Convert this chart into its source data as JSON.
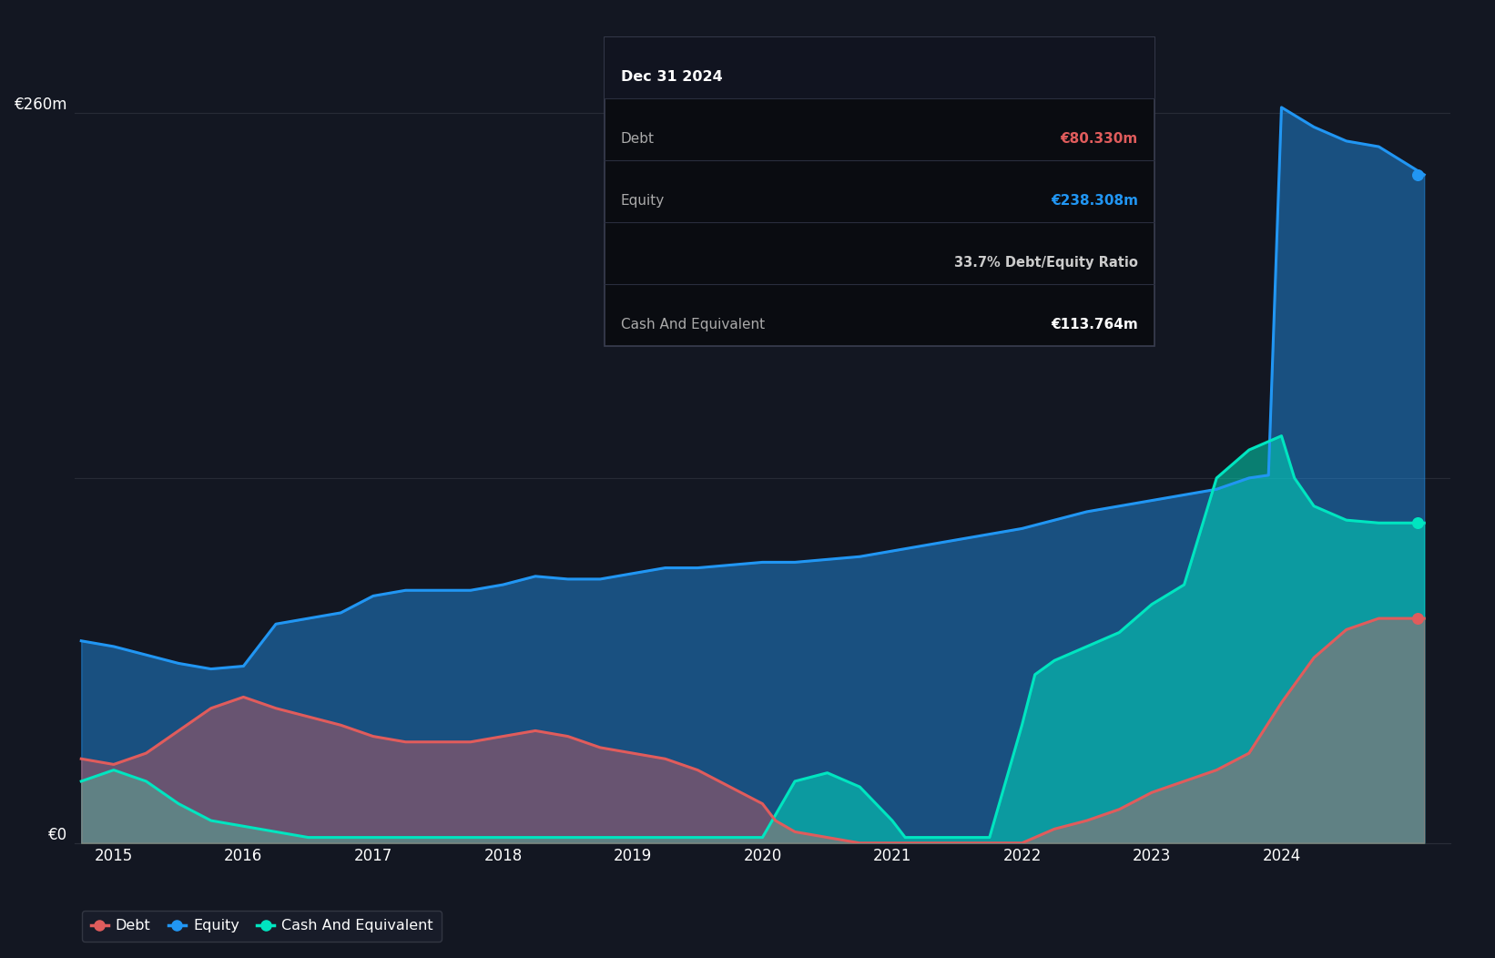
{
  "background_color": "#131722",
  "plot_bg_color": "#131722",
  "grid_color": "#2a2e39",
  "debt_color": "#e05c5c",
  "equity_color": "#2196f3",
  "cash_color": "#00e5c0",
  "ylim": [
    0,
    290
  ],
  "xlim_start": 2014.7,
  "xlim_end": 2025.3,
  "tooltip": {
    "title": "Dec 31 2024",
    "debt_label": "Debt",
    "debt_value": "€80.330m",
    "equity_label": "Equity",
    "equity_value": "€238.308m",
    "ratio_text": "33.7% Debt/Equity Ratio",
    "cash_label": "Cash And Equivalent",
    "cash_value": "€113.764m"
  },
  "legend": [
    {
      "label": "Debt",
      "color": "#e05c5c"
    },
    {
      "label": "Equity",
      "color": "#2196f3"
    },
    {
      "label": "Cash And Equivalent",
      "color": "#00e5c0"
    }
  ],
  "dates_equity": [
    2014.75,
    2015.0,
    2015.25,
    2015.5,
    2015.75,
    2016.0,
    2016.25,
    2016.5,
    2016.75,
    2017.0,
    2017.25,
    2017.5,
    2017.75,
    2018.0,
    2018.25,
    2018.5,
    2018.75,
    2019.0,
    2019.25,
    2019.5,
    2019.75,
    2020.0,
    2020.25,
    2020.5,
    2020.75,
    2021.0,
    2021.25,
    2021.5,
    2021.75,
    2022.0,
    2022.25,
    2022.5,
    2022.75,
    2023.0,
    2023.25,
    2023.5,
    2023.75,
    2023.9,
    2024.0,
    2024.25,
    2024.5,
    2024.75,
    2025.1
  ],
  "values_equity": [
    72,
    70,
    67,
    64,
    62,
    63,
    78,
    80,
    82,
    88,
    90,
    90,
    90,
    92,
    95,
    94,
    94,
    96,
    98,
    98,
    99,
    100,
    100,
    101,
    102,
    104,
    106,
    108,
    110,
    112,
    115,
    118,
    120,
    122,
    124,
    126,
    130,
    131,
    262,
    255,
    250,
    248,
    238
  ],
  "dates_debt": [
    2014.75,
    2015.0,
    2015.25,
    2015.5,
    2015.75,
    2016.0,
    2016.25,
    2016.5,
    2016.75,
    2017.0,
    2017.25,
    2017.5,
    2017.75,
    2018.0,
    2018.25,
    2018.5,
    2018.75,
    2019.0,
    2019.25,
    2019.5,
    2019.75,
    2020.0,
    2020.1,
    2020.25,
    2020.5,
    2020.75,
    2021.0,
    2021.25,
    2021.5,
    2021.75,
    2022.0,
    2022.25,
    2022.5,
    2022.75,
    2023.0,
    2023.25,
    2023.5,
    2023.75,
    2024.0,
    2024.25,
    2024.5,
    2024.75,
    2025.1
  ],
  "values_debt": [
    30,
    28,
    32,
    40,
    48,
    52,
    48,
    45,
    42,
    38,
    36,
    36,
    36,
    38,
    40,
    38,
    34,
    32,
    30,
    26,
    20,
    14,
    8,
    4,
    2,
    0,
    0,
    0,
    0,
    0,
    0,
    5,
    8,
    12,
    18,
    22,
    26,
    32,
    50,
    66,
    76,
    80,
    80
  ],
  "dates_cash": [
    2014.75,
    2015.0,
    2015.25,
    2015.5,
    2015.75,
    2016.0,
    2016.25,
    2016.5,
    2016.75,
    2017.0,
    2017.25,
    2017.5,
    2017.75,
    2018.0,
    2018.25,
    2018.5,
    2018.75,
    2019.0,
    2019.25,
    2019.5,
    2019.75,
    2020.0,
    2020.25,
    2020.5,
    2020.75,
    2021.0,
    2021.1,
    2021.25,
    2021.5,
    2021.75,
    2022.0,
    2022.1,
    2022.25,
    2022.5,
    2022.75,
    2023.0,
    2023.25,
    2023.5,
    2023.75,
    2024.0,
    2024.1,
    2024.25,
    2024.5,
    2024.75,
    2025.1
  ],
  "values_cash": [
    22,
    26,
    22,
    14,
    8,
    6,
    4,
    2,
    2,
    2,
    2,
    2,
    2,
    2,
    2,
    2,
    2,
    2,
    2,
    2,
    2,
    2,
    22,
    25,
    20,
    8,
    2,
    2,
    2,
    2,
    42,
    60,
    65,
    70,
    75,
    85,
    92,
    130,
    140,
    145,
    130,
    120,
    115,
    114,
    114
  ]
}
